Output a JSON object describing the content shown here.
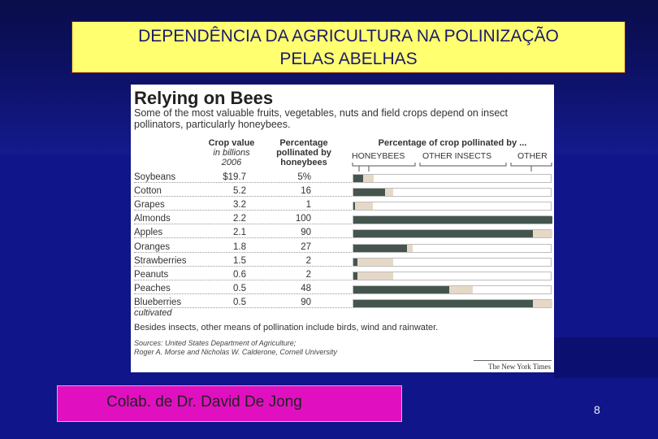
{
  "slide": {
    "title_line1": "DEPENDÊNCIA DA  AGRICULTURA  NA POLINIZAÇÃO",
    "title_line2": "PELAS ABELHAS",
    "credit": "Colab. de Dr. David De Jong",
    "page_number": "8"
  },
  "figure": {
    "heading": "Relying on Bees",
    "subheading": "Some of the most valuable fruits, vegetables, nuts and field crops depend on insect pollinators, particularly honeybees.",
    "col_value": {
      "line1": "Crop value",
      "line2": "in billions",
      "line3": "2006"
    },
    "col_pct": {
      "line1": "Percentage",
      "line2": "pollinated by",
      "line3": "honeybees"
    },
    "col_bar": "Percentage of crop pollinated by ...",
    "legend": [
      "HONEYBEES",
      "OTHER INSECTS",
      "OTHER"
    ],
    "footnote": "Besides insects, other means of pollination include birds, wind and rainwater.",
    "source_line1": "Sources: United States Department of Agriculture;",
    "source_line2": "Roger A. Morse and Nicholas W. Calderone, Cornell University",
    "publisher": "The New York Times"
  },
  "chart_data": {
    "type": "bar",
    "title": "Relying on Bees",
    "categories": [
      "Soybeans",
      "Cotton",
      "Grapes",
      "Almonds",
      "Apples",
      "Oranges",
      "Strawberries",
      "Peanuts",
      "Peaches",
      "Blueberries"
    ],
    "category_notes": {
      "Blueberries": "cultivated"
    },
    "crop_value_billions": [
      "$19.7",
      "5.2",
      "3.2",
      "2.2",
      "2.1",
      "1.8",
      "1.5",
      "0.6",
      "0.5",
      "0.5"
    ],
    "pct_honeybees_labels": [
      "5%",
      "16",
      "1",
      "100",
      "90",
      "27",
      "2",
      "2",
      "48",
      "90"
    ],
    "series": [
      {
        "name": "HONEYBEES",
        "values": [
          5,
          16,
          1,
          100,
          90,
          27,
          2,
          2,
          48,
          90
        ]
      },
      {
        "name": "OTHER INSECTS",
        "values": [
          5,
          4,
          9,
          0,
          10,
          3,
          18,
          18,
          12,
          10
        ]
      },
      {
        "name": "OTHER",
        "values": [
          90,
          80,
          90,
          0,
          0,
          70,
          80,
          80,
          40,
          0
        ]
      }
    ],
    "xlim": [
      0,
      100
    ]
  },
  "colors": {
    "background": "#10158a",
    "title_box": "#ffff70",
    "honeybees": "#44554e",
    "other_insects": "#e6d8c6",
    "other": "#ffffff",
    "credit_box": "#e010c0"
  }
}
